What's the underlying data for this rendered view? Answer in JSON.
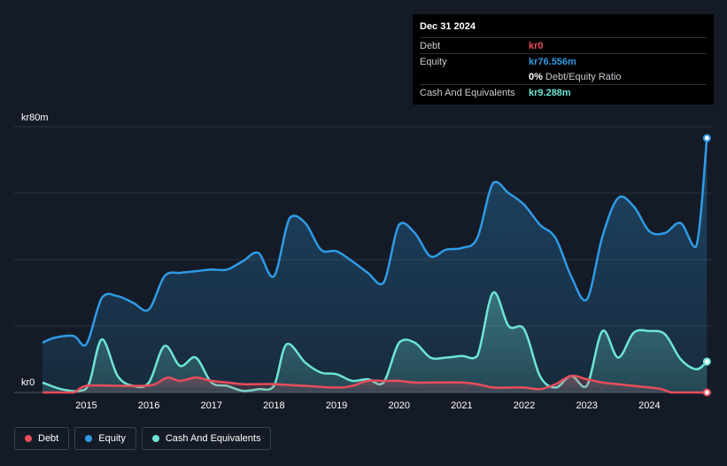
{
  "tooltip": {
    "date": "Dec 31 2024",
    "rows": [
      {
        "label": "Debt",
        "value": "kr0",
        "color": "#e84d5b"
      },
      {
        "label": "Equity",
        "value": "kr76.556m",
        "color": "#2f9be6"
      },
      {
        "label": "",
        "value": "0%",
        "suffix": "Debt/Equity Ratio",
        "color": "#ffffff"
      },
      {
        "label": "Cash And Equivalents",
        "value": "kr9.288m",
        "color": "#6ee5d5"
      }
    ]
  },
  "legend": [
    {
      "label": "Debt",
      "color": "#e84d5b"
    },
    {
      "label": "Equity",
      "color": "#2f9be6"
    },
    {
      "label": "Cash And Equivalents",
      "color": "#6ee5d5"
    }
  ],
  "chart_data": {
    "type": "area",
    "y_top_label": "kr80m",
    "y_bottom_label": "kr0",
    "ylim": [
      0,
      80
    ],
    "xlim": [
      2014.3,
      2025.0
    ],
    "x_ticks": [
      "2015",
      "2016",
      "2017",
      "2018",
      "2019",
      "2020",
      "2021",
      "2022",
      "2023",
      "2024"
    ],
    "grid": true,
    "legend_position": "bottom-left",
    "series": [
      {
        "name": "Equity",
        "color": "#2f9be6",
        "x": [
          2014.3,
          2014.5,
          2014.8,
          2015.0,
          2015.25,
          2015.5,
          2015.75,
          2016.0,
          2016.25,
          2016.5,
          2016.75,
          2017.0,
          2017.25,
          2017.5,
          2017.75,
          2018.0,
          2018.25,
          2018.5,
          2018.75,
          2019.0,
          2019.25,
          2019.5,
          2019.75,
          2020.0,
          2020.25,
          2020.5,
          2020.75,
          2021.0,
          2021.25,
          2021.5,
          2021.75,
          2022.0,
          2022.25,
          2022.5,
          2022.75,
          2023.0,
          2023.25,
          2023.5,
          2023.75,
          2024.0,
          2024.25,
          2024.5,
          2024.75,
          2024.92
        ],
        "values": [
          15,
          16.5,
          17,
          14.5,
          28.5,
          29,
          27,
          25,
          35,
          36,
          36.5,
          37,
          37,
          39.5,
          42,
          35,
          52.5,
          51,
          43,
          42.5,
          39.5,
          36,
          33,
          50.5,
          48,
          41,
          43,
          43.5,
          46.5,
          63,
          60,
          56.5,
          50.5,
          46.5,
          35,
          28,
          47,
          58.5,
          56,
          48.5,
          48,
          51,
          44,
          76.556
        ]
      },
      {
        "name": "Cash And Equivalents",
        "color": "#6ee5d5",
        "x": [
          2014.3,
          2014.6,
          2014.9,
          2015.05,
          2015.25,
          2015.5,
          2015.75,
          2016.0,
          2016.25,
          2016.5,
          2016.75,
          2017.0,
          2017.25,
          2017.5,
          2017.75,
          2018.0,
          2018.2,
          2018.5,
          2018.75,
          2019.0,
          2019.25,
          2019.5,
          2019.75,
          2020.0,
          2020.25,
          2020.5,
          2020.75,
          2021.0,
          2021.25,
          2021.5,
          2021.75,
          2022.0,
          2022.25,
          2022.5,
          2022.75,
          2023.0,
          2023.25,
          2023.5,
          2023.75,
          2024.0,
          2024.25,
          2024.5,
          2024.75,
          2024.92
        ],
        "values": [
          3,
          1,
          0.5,
          3,
          16,
          5,
          2,
          3,
          14,
          8,
          10.5,
          3,
          2,
          0.5,
          1,
          2,
          14.5,
          9,
          6,
          5.5,
          3.5,
          4,
          3,
          15,
          15,
          10.5,
          10.5,
          11,
          11,
          30,
          20,
          19,
          5,
          1.5,
          5,
          2,
          18.5,
          10.5,
          18,
          18.5,
          17.5,
          10,
          7,
          9.288
        ]
      },
      {
        "name": "Debt",
        "color": "#e84d5b",
        "x": [
          2014.3,
          2014.6,
          2014.8,
          2015.0,
          2015.5,
          2015.9,
          2016.1,
          2016.3,
          2016.5,
          2016.75,
          2017.0,
          2017.25,
          2017.5,
          2017.75,
          2018.0,
          2018.5,
          2019.0,
          2019.25,
          2019.5,
          2019.75,
          2020.0,
          2020.25,
          2020.5,
          2021.0,
          2021.25,
          2021.5,
          2021.75,
          2022.0,
          2022.25,
          2022.5,
          2022.75,
          2023.0,
          2023.25,
          2023.5,
          2023.75,
          2024.0,
          2024.2,
          2024.35,
          2024.6,
          2024.92
        ],
        "values": [
          0,
          0,
          0,
          2,
          2,
          2,
          2.5,
          4.5,
          3.5,
          4.5,
          3.5,
          3,
          2.5,
          2.5,
          2.5,
          2,
          1.5,
          2,
          3.5,
          3.5,
          3.5,
          3,
          3,
          3,
          2.5,
          1.5,
          1.5,
          1.5,
          1,
          2.5,
          5,
          4,
          3,
          2.5,
          2,
          1.5,
          1,
          0,
          0,
          0
        ]
      }
    ]
  }
}
